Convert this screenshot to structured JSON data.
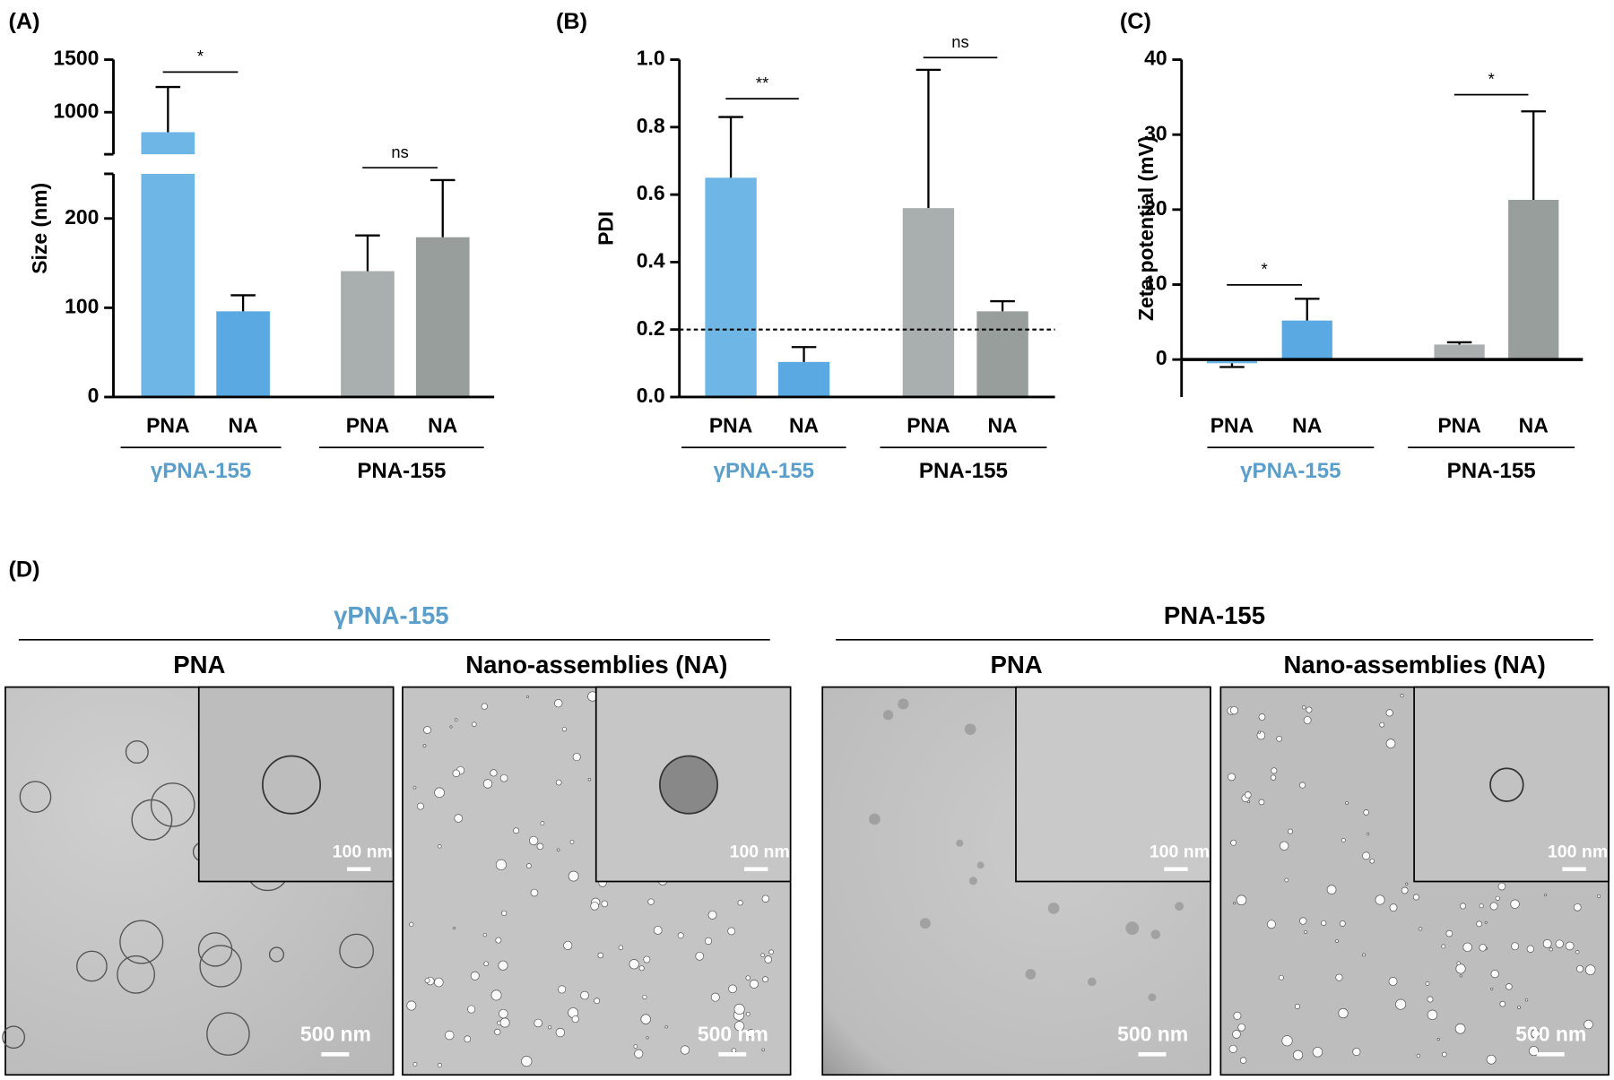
{
  "chart_data": [
    {
      "type": "bar",
      "label": "(A)",
      "y_label": "Size (nm)",
      "categories": [
        "PNA",
        "NA",
        "PNA",
        "NA"
      ],
      "groups": [
        {
          "name": "γPNA-155",
          "color": "#5a9fcb"
        },
        {
          "name": "PNA-155",
          "color": "#000000"
        }
      ],
      "values": [
        810,
        96,
        141,
        179
      ],
      "errors": [
        430,
        18,
        40,
        64
      ],
      "colors": [
        "#6db6e6",
        "#5aa9e3",
        "#a9aeae",
        "#979e9b"
      ],
      "ylim": [
        0,
        250
      ],
      "yticks": [
        0,
        100,
        200
      ],
      "y_break": {
        "ylim": [
          600,
          1500
        ],
        "yticks": [
          1000,
          1500
        ]
      },
      "significance": [
        {
          "between": [
            0,
            1
          ],
          "label": "*"
        },
        {
          "between": [
            2,
            3
          ],
          "label": "ns"
        }
      ]
    },
    {
      "type": "bar",
      "label": "(B)",
      "y_label": "PDI",
      "categories": [
        "PNA",
        "NA",
        "PNA",
        "NA"
      ],
      "groups": [
        {
          "name": "γPNA-155",
          "color": "#5a9fcb"
        },
        {
          "name": "PNA-155",
          "color": "#000000"
        }
      ],
      "values": [
        0.65,
        0.104,
        0.56,
        0.254
      ],
      "errors": [
        0.18,
        0.044,
        0.41,
        0.03
      ],
      "colors": [
        "#6db6e6",
        "#5aa9e3",
        "#a9aeae",
        "#979e9b"
      ],
      "ylim": [
        0,
        1
      ],
      "yticks": [
        {
          "value": 0,
          "label": "0.0"
        },
        0.2,
        0.4,
        0.6,
        0.8,
        {
          "value": 1,
          "label": "1.0"
        }
      ],
      "reference_line": 0.2,
      "significance": [
        {
          "between": [
            0,
            1
          ],
          "label": "**"
        },
        {
          "between": [
            2,
            3
          ],
          "label": "ns"
        }
      ]
    },
    {
      "type": "bar",
      "label": "(C)",
      "y_label": "Zeta potential (mV)",
      "categories": [
        "PNA",
        "NA",
        "PNA",
        "NA"
      ],
      "groups": [
        {
          "name": "γPNA-155",
          "color": "#5a9fcb"
        },
        {
          "name": "PNA-155",
          "color": "#000000"
        }
      ],
      "values": [
        -0.5,
        5.2,
        2.0,
        21.3
      ],
      "errors": [
        0.5,
        2.9,
        0.3,
        11.8
      ],
      "colors": [
        "#6db6e6",
        "#5aa9e3",
        "#a9aeae",
        "#979e9b"
      ],
      "ylim": [
        -5,
        40
      ],
      "yticks": [
        0,
        10,
        20,
        30,
        40
      ],
      "significance": [
        {
          "between": [
            0,
            1
          ],
          "label": "*"
        },
        {
          "between": [
            2,
            3
          ],
          "label": "*"
        }
      ]
    }
  ],
  "panel_d": {
    "label": "(D)",
    "groups": [
      {
        "name": "γPNA-155",
        "color": "#5a9fcb",
        "images": [
          {
            "title": "PNA",
            "inset_scale": "100 nm",
            "scale": "500 nm"
          },
          {
            "title": "Nano-assemblies (NA)",
            "inset_scale": "100 nm",
            "scale": "500 nm"
          }
        ]
      },
      {
        "name": "PNA-155",
        "color": "#000000",
        "images": [
          {
            "title": "PNA",
            "inset_scale": "100 nm",
            "scale": "500 nm"
          },
          {
            "title": "Nano-assemblies (NA)",
            "inset_scale": "100 nm",
            "scale": "500 nm"
          }
        ]
      }
    ]
  }
}
